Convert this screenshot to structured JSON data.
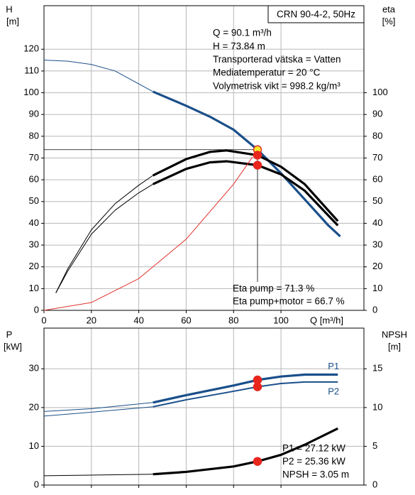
{
  "chart_data": [
    {
      "type": "line",
      "title": "CRN 90-4-2, 50Hz",
      "y_label": "H",
      "y_unit": "[m]",
      "y2_label": "eta",
      "y2_unit": "[%]",
      "x_label": "Q [m³/h]",
      "info": [
        "Q = 90.1 m³/h",
        "H = 73.84 m",
        "Transporterad vätska = Vatten",
        "Mediatemperatur = 20 °C",
        "Volymetrisk vikt = 998.2 kg/m³"
      ],
      "readout": [
        "Eta pump = 71.3 %",
        "Eta pump+motor = 66.7 %"
      ],
      "xlim": [
        0,
        135
      ],
      "xticks": [
        0,
        20,
        40,
        60,
        80,
        100
      ],
      "show_xtick_labels": true,
      "ylim": [
        0,
        140
      ],
      "yticks": [
        0,
        10,
        20,
        30,
        40,
        50,
        60,
        70,
        80,
        90,
        100,
        110,
        120
      ],
      "y2lim": [
        0,
        140
      ],
      "y2ticks": [
        0,
        10,
        20,
        30,
        40,
        50,
        60,
        70,
        80,
        90,
        100
      ],
      "grid": true,
      "crosshair": true,
      "series": [
        {
          "color": "#1a4f8a",
          "weight": "thin",
          "x": [
            0,
            10,
            20,
            30,
            46
          ],
          "values": [
            115,
            114.5,
            113,
            110,
            100.5
          ]
        },
        {
          "color": "#1a4f8a",
          "weight": "thick",
          "x": [
            46,
            60,
            70,
            80,
            90.1,
            100,
            110,
            120,
            125
          ],
          "values": [
            100.5,
            94,
            89,
            83,
            73.84,
            63,
            51,
            39,
            34
          ]
        },
        {
          "color": "#000000",
          "weight": "thin",
          "axis": "y2",
          "x": [
            5,
            10,
            20,
            30,
            40,
            46
          ],
          "values": [
            8,
            19,
            37,
            49,
            57.5,
            62
          ]
        },
        {
          "color": "#000000",
          "weight": "thick",
          "axis": "y2",
          "x": [
            46,
            60,
            70,
            77,
            90.1,
            100,
            110,
            124
          ],
          "values": [
            62,
            69.5,
            72.8,
            73.5,
            71.3,
            66,
            58,
            41
          ]
        },
        {
          "color": "#000000",
          "weight": "thin",
          "axis": "y2",
          "x": [
            5,
            10,
            20,
            30,
            40,
            46
          ],
          "values": [
            8,
            18,
            35,
            46,
            54,
            58
          ]
        },
        {
          "color": "#000000",
          "weight": "thick",
          "axis": "y2",
          "x": [
            46,
            60,
            70,
            77,
            90.1,
            100,
            110,
            124
          ],
          "values": [
            58,
            65,
            68,
            68.5,
            66.7,
            62.5,
            55,
            39
          ]
        },
        {
          "color": "#e0302a",
          "weight": "thin",
          "x": [
            0,
            20,
            40,
            60,
            80,
            88
          ],
          "values": [
            0,
            3.6,
            14.6,
            32.7,
            58,
            70.5
          ]
        }
      ],
      "points": [
        {
          "x": 90.1,
          "value": 73.84,
          "color": "#f5e82a",
          "stroke": "#e0302a"
        },
        {
          "x": 90.1,
          "value": 71.3,
          "axis": "y2",
          "color": "#e8261e",
          "stroke": "#e8261e"
        },
        {
          "x": 90.1,
          "value": 66.7,
          "axis": "y2",
          "color": "#e8261e",
          "stroke": "#e8261e"
        }
      ]
    },
    {
      "type": "line",
      "y_label": "P",
      "y_unit": "[kW]",
      "y2_label": "NPSH",
      "y2_unit": "[m]",
      "readout": [
        "P1 = 27.12 kW",
        "P2 = 25.36 kW",
        "NPSH = 3.05 m"
      ],
      "xlim": [
        0,
        135
      ],
      "xticks": [
        0,
        20,
        40,
        60,
        80,
        100
      ],
      "show_xtick_labels": false,
      "ylim": [
        0,
        40.5
      ],
      "yticks": [
        0,
        10,
        20,
        30
      ],
      "y2lim": [
        0,
        20.25
      ],
      "y2ticks": [
        0,
        5,
        10,
        15
      ],
      "grid": true,
      "crosshair": false,
      "series": [
        {
          "color": "#1a4f8a",
          "weight": "thin",
          "x": [
            0,
            20,
            46
          ],
          "values": [
            19,
            19.7,
            21.3
          ]
        },
        {
          "name": "P1",
          "color": "#1a4f8a",
          "weight": "thick",
          "x": [
            46,
            60,
            80,
            90.1,
            100,
            110,
            124
          ],
          "values": [
            21.3,
            23.2,
            25.7,
            27.12,
            28,
            28.5,
            28.5
          ]
        },
        {
          "color": "#1a4f8a",
          "weight": "thin",
          "x": [
            0,
            20,
            46
          ],
          "values": [
            17.8,
            18.8,
            20.2
          ]
        },
        {
          "name": "P2",
          "color": "#1a4f8a",
          "weight": "medium",
          "x": [
            46,
            60,
            80,
            90.1,
            100,
            110,
            124
          ],
          "values": [
            20.2,
            22,
            24.2,
            25.36,
            26.2,
            26.6,
            26.6
          ]
        },
        {
          "color": "#000000",
          "weight": "thin",
          "axis": "y2",
          "x": [
            0,
            46
          ],
          "values": [
            1.2,
            1.4
          ]
        },
        {
          "color": "#000000",
          "weight": "thick",
          "axis": "y2",
          "x": [
            46,
            60,
            80,
            90.1,
            100,
            110,
            124
          ],
          "values": [
            1.4,
            1.7,
            2.4,
            3.05,
            3.9,
            5.2,
            7.3
          ]
        }
      ],
      "points": [
        {
          "x": 90.1,
          "value": 27.12,
          "color": "#e8261e",
          "stroke": "#e8261e"
        },
        {
          "x": 90.1,
          "value": 25.36,
          "color": "#e8261e",
          "stroke": "#e8261e"
        },
        {
          "x": 90.1,
          "value": 3.05,
          "axis": "y2",
          "color": "#e8261e",
          "stroke": "#e8261e"
        }
      ]
    }
  ]
}
